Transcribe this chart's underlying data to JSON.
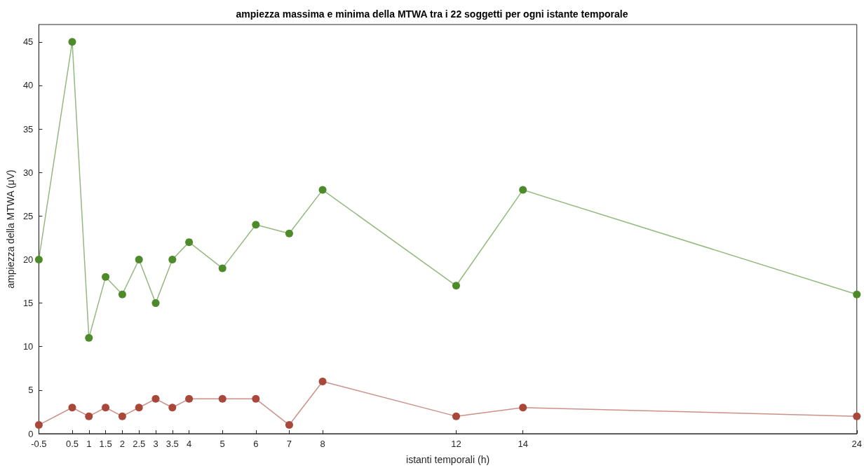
{
  "chart_data": {
    "type": "line",
    "title": "ampiezza massima e minima della MTWA tra i 22 soggetti per ogni istante temporale",
    "xlabel": "istanti temporali (h)",
    "ylabel": "ampiezza della MTWA (μV)",
    "x": [
      -0.5,
      0.5,
      1,
      1.5,
      2,
      2.5,
      3,
      3.5,
      4,
      5,
      6,
      7,
      8,
      12,
      14,
      24
    ],
    "series": [
      {
        "color": "#4d8a2a",
        "values": [
          20,
          45,
          11,
          18,
          16,
          20,
          15,
          20,
          22,
          19,
          24,
          23,
          28,
          17,
          28,
          16
        ]
      },
      {
        "color": "#a9473a",
        "values": [
          1,
          3,
          2,
          3,
          2,
          3,
          4,
          3,
          4,
          4,
          4,
          1,
          6,
          2,
          3,
          2
        ]
      }
    ],
    "xlim": [
      -0.5,
      24
    ],
    "xticks": [
      -0.5,
      0.5,
      1,
      1.5,
      2,
      2.5,
      3,
      3.5,
      4,
      5,
      6,
      7,
      8,
      12,
      14,
      24
    ],
    "ylim": [
      0,
      47
    ],
    "yticks": [
      0,
      5,
      10,
      15,
      20,
      25,
      30,
      35,
      40,
      45
    ],
    "grid": false,
    "marker": "circle",
    "line_style": "solid"
  }
}
